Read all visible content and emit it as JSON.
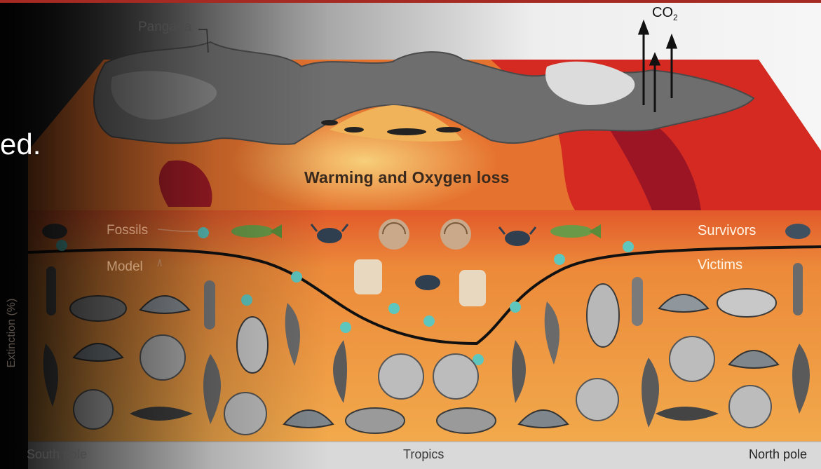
{
  "slide": {
    "text_fragment": "ed."
  },
  "diagram": {
    "labels": {
      "pangaea": "Pangaea",
      "co2": "CO",
      "co2_subscript": "2",
      "headline": "Warming and Oxygen loss",
      "fossils": "Fossils",
      "model": "Model",
      "survivors": "Survivors",
      "victims": "Victims",
      "y_axis": "Extinction (%)",
      "south_pole": "South pole",
      "tropics": "Tropics",
      "north_pole": "North pole"
    },
    "colors": {
      "ocean_warm": "#d9281e",
      "ocean_mid": "#e9853a",
      "ocean_cool": "#f6c467",
      "land_gray": "#6e6e6e",
      "fossil_dot": "#5fc6be",
      "model_line": "#111111"
    },
    "icons": [
      "trilobite-icon",
      "brachiopod-icon",
      "ammonite-icon",
      "crinoid-icon",
      "horn-coral-icon",
      "crab-icon",
      "fish-icon",
      "nautilus-icon",
      "bryozoan-icon"
    ]
  }
}
